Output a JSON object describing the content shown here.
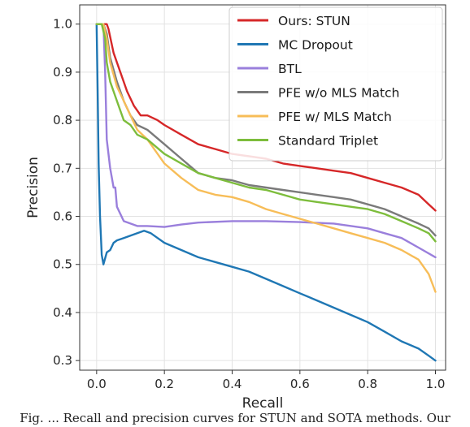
{
  "chart_data": {
    "type": "line",
    "title": "",
    "xlabel": "Recall",
    "ylabel": "Precision",
    "xlim": [
      -0.05,
      1.03
    ],
    "ylim": [
      0.28,
      1.04
    ],
    "xticks": [
      0.0,
      0.2,
      0.4,
      0.6,
      0.8,
      1.0
    ],
    "xtick_labels": [
      "0.0",
      "0.2",
      "0.4",
      "0.6",
      "0.8",
      "1.0"
    ],
    "yticks": [
      0.3,
      0.4,
      0.5,
      0.6,
      0.7,
      0.8,
      0.9,
      1.0
    ],
    "ytick_labels": [
      "0.3",
      "0.4",
      "0.5",
      "0.6",
      "0.7",
      "0.8",
      "0.9",
      "1.0"
    ],
    "grid": true,
    "legend_position": "top-right",
    "series": [
      {
        "name": "Ours: STUN",
        "color": "#d62728",
        "x": [
          0.0,
          0.03,
          0.035,
          0.05,
          0.07,
          0.09,
          0.11,
          0.13,
          0.15,
          0.18,
          0.2,
          0.25,
          0.3,
          0.35,
          0.4,
          0.45,
          0.5,
          0.55,
          0.6,
          0.65,
          0.7,
          0.75,
          0.8,
          0.85,
          0.9,
          0.95,
          0.98,
          1.0
        ],
        "y": [
          1.0,
          1.0,
          0.99,
          0.94,
          0.9,
          0.86,
          0.83,
          0.81,
          0.81,
          0.8,
          0.79,
          0.77,
          0.75,
          0.74,
          0.73,
          0.725,
          0.72,
          0.71,
          0.705,
          0.7,
          0.695,
          0.69,
          0.68,
          0.67,
          0.66,
          0.645,
          0.625,
          0.612
        ]
      },
      {
        "name": "MC Dropout",
        "color": "#1f77b4",
        "x": [
          0.0,
          0.003,
          0.006,
          0.01,
          0.015,
          0.02,
          0.03,
          0.04,
          0.05,
          0.06,
          0.08,
          0.1,
          0.12,
          0.14,
          0.16,
          0.18,
          0.2,
          0.25,
          0.3,
          0.35,
          0.4,
          0.45,
          0.5,
          0.55,
          0.6,
          0.65,
          0.7,
          0.75,
          0.8,
          0.85,
          0.9,
          0.95,
          0.98,
          1.0
        ],
        "y": [
          1.0,
          0.86,
          0.71,
          0.6,
          0.52,
          0.5,
          0.525,
          0.53,
          0.545,
          0.55,
          0.555,
          0.56,
          0.565,
          0.57,
          0.565,
          0.555,
          0.545,
          0.53,
          0.515,
          0.505,
          0.495,
          0.485,
          0.47,
          0.455,
          0.44,
          0.425,
          0.41,
          0.395,
          0.38,
          0.36,
          0.34,
          0.325,
          0.31,
          0.3
        ]
      },
      {
        "name": "BTL",
        "color": "#9a7fdc",
        "x": [
          0.0,
          0.02,
          0.025,
          0.03,
          0.04,
          0.05,
          0.055,
          0.06,
          0.08,
          0.1,
          0.12,
          0.15,
          0.2,
          0.25,
          0.3,
          0.4,
          0.5,
          0.6,
          0.7,
          0.8,
          0.85,
          0.9,
          0.95,
          1.0
        ],
        "y": [
          1.0,
          1.0,
          0.9,
          0.76,
          0.7,
          0.66,
          0.66,
          0.62,
          0.59,
          0.585,
          0.58,
          0.58,
          0.578,
          0.583,
          0.587,
          0.59,
          0.59,
          0.588,
          0.585,
          0.575,
          0.565,
          0.555,
          0.535,
          0.515
        ]
      },
      {
        "name": "PFE w/o MLS Match",
        "color": "#7a7a7a",
        "x": [
          0.0,
          0.02,
          0.03,
          0.04,
          0.06,
          0.08,
          0.1,
          0.12,
          0.15,
          0.2,
          0.25,
          0.3,
          0.35,
          0.4,
          0.45,
          0.5,
          0.55,
          0.6,
          0.65,
          0.7,
          0.75,
          0.8,
          0.85,
          0.9,
          0.95,
          0.98,
          1.0
        ],
        "y": [
          1.0,
          1.0,
          0.98,
          0.93,
          0.88,
          0.84,
          0.81,
          0.79,
          0.78,
          0.75,
          0.72,
          0.69,
          0.68,
          0.675,
          0.665,
          0.66,
          0.655,
          0.65,
          0.645,
          0.64,
          0.635,
          0.625,
          0.615,
          0.6,
          0.585,
          0.575,
          0.56
        ]
      },
      {
        "name": "PFE w/ MLS Match",
        "color": "#f7bd58",
        "x": [
          0.0,
          0.02,
          0.03,
          0.04,
          0.06,
          0.08,
          0.1,
          0.12,
          0.15,
          0.2,
          0.25,
          0.3,
          0.35,
          0.4,
          0.45,
          0.5,
          0.55,
          0.6,
          0.65,
          0.7,
          0.75,
          0.8,
          0.85,
          0.9,
          0.95,
          0.98,
          1.0
        ],
        "y": [
          1.0,
          1.0,
          0.97,
          0.92,
          0.87,
          0.84,
          0.81,
          0.78,
          0.76,
          0.71,
          0.68,
          0.655,
          0.645,
          0.64,
          0.63,
          0.615,
          0.605,
          0.595,
          0.585,
          0.575,
          0.565,
          0.555,
          0.545,
          0.53,
          0.51,
          0.48,
          0.443
        ]
      },
      {
        "name": "Standard Triplet",
        "color": "#7dbd3c",
        "x": [
          0.0,
          0.015,
          0.025,
          0.03,
          0.04,
          0.05,
          0.06,
          0.08,
          0.1,
          0.12,
          0.15,
          0.2,
          0.25,
          0.3,
          0.35,
          0.4,
          0.45,
          0.5,
          0.55,
          0.6,
          0.65,
          0.7,
          0.75,
          0.8,
          0.85,
          0.9,
          0.95,
          0.98,
          1.0
        ],
        "y": [
          1.0,
          1.0,
          0.97,
          0.92,
          0.88,
          0.86,
          0.84,
          0.8,
          0.79,
          0.77,
          0.76,
          0.73,
          0.71,
          0.69,
          0.68,
          0.67,
          0.66,
          0.655,
          0.645,
          0.635,
          0.63,
          0.625,
          0.62,
          0.615,
          0.605,
          0.59,
          0.575,
          0.565,
          0.548
        ]
      }
    ]
  },
  "caption_text": "Fig. ... Recall and precision curves for STUN and SOTA methods. Our"
}
